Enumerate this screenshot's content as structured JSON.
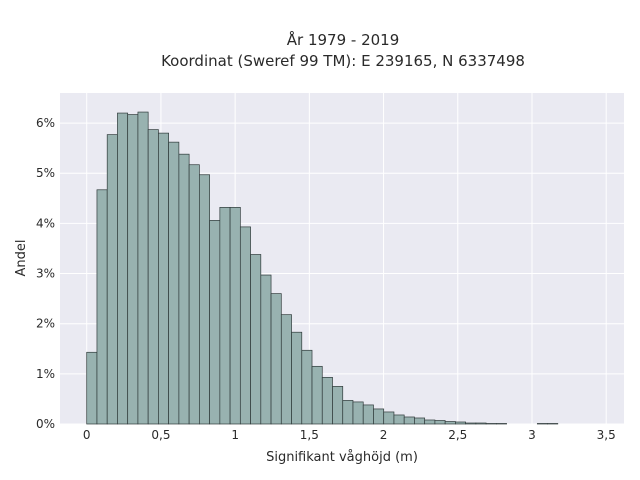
{
  "chart_data": {
    "type": "bar",
    "title": "År 1979 - 2019",
    "subtitle": "Koordinat (Sweref 99 TM): E 239165, N 6337498",
    "xlabel": "Signifikant våghöjd (m)",
    "ylabel": "Andel",
    "xlim": [
      -0.18,
      3.62
    ],
    "ylim": [
      0,
      6.6
    ],
    "x_ticks": [
      0,
      0.5,
      1,
      1.5,
      2,
      2.5,
      3,
      3.5
    ],
    "x_tick_labels": [
      "0",
      "0,5",
      "1",
      "1,5",
      "2",
      "2,5",
      "3",
      "3,5"
    ],
    "y_ticks": [
      0,
      1,
      2,
      3,
      4,
      5,
      6
    ],
    "y_tick_labels": [
      "0%",
      "1%",
      "2%",
      "3%",
      "4%",
      "5%",
      "6%"
    ],
    "grid": true,
    "bin_width": 0.069,
    "bin_start": 0,
    "values": [
      1.43,
      4.67,
      5.77,
      6.2,
      6.17,
      6.22,
      5.87,
      5.8,
      5.62,
      5.38,
      5.17,
      4.97,
      4.06,
      4.32,
      4.32,
      3.93,
      3.38,
      2.97,
      2.6,
      2.18,
      1.83,
      1.47,
      1.15,
      0.93,
      0.75,
      0.47,
      0.44,
      0.38,
      0.3,
      0.24,
      0.18,
      0.14,
      0.12,
      0.08,
      0.07,
      0.05,
      0.04,
      0.02,
      0.02,
      0.01,
      0.01,
      0,
      0,
      0,
      0.01,
      0.01
    ],
    "colors": {
      "bar_fill": "#98b2b0",
      "bar_stroke": "#2f3a3a",
      "plot_background": "#eaeaf2",
      "grid": "#ffffff"
    }
  }
}
